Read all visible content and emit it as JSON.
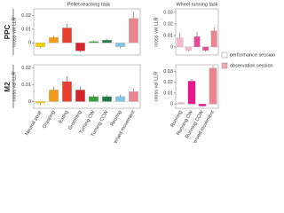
{
  "rows": [
    "PPC",
    "M2"
  ],
  "legend": [
    {
      "name": "performance session",
      "color": "#ffffff"
    },
    {
      "name": "observation session",
      "color": "#f2a7b4"
    }
  ],
  "chart_data": [
    {
      "type": "bar",
      "title": "Pellet-reaching task",
      "ylabel": "cross val LLR",
      "values": [
        -0.003,
        0.004,
        0.011,
        -0.006,
        0.001,
        0.002,
        -0.003,
        0.018
      ],
      "errors": [
        0.001,
        0.001,
        0.003,
        0.001,
        0.001,
        0.001,
        0.001,
        0.005
      ],
      "colors": [
        "#f2d100",
        "#f39a1d",
        "#e8402f",
        "#d4232b",
        "#3aa13a",
        "#1f7a4a",
        "#7fc6e4",
        "#e8868f"
      ],
      "ylim": [
        -0.009,
        0.025
      ],
      "yticks": [
        0,
        0.01,
        0.02
      ]
    },
    {
      "type": "bar",
      "title": "Wheel running task",
      "ylabel": "cross val LLR",
      "values": [
        0.008,
        -0.003,
        0.009,
        -0.003,
        0.014
      ],
      "errors": [
        0.004,
        0.001,
        0.004,
        0.001,
        0.003
      ],
      "colors": [
        "#f6b7cb",
        "#f6b7cb",
        "#e8449a",
        "#e8449a",
        "#e8868f"
      ],
      "ylim": [
        -0.007,
        0.033
      ],
      "yticks": [
        0,
        0.01,
        0.02,
        0.03
      ]
    },
    {
      "type": "bar",
      "ylabel": "cross val LLR",
      "categories": [
        "Neutral pose",
        "Grasping",
        "Eating",
        "Grooming",
        "Turning CW",
        "Turning CCW",
        "Rearing",
        "Observed movement"
      ],
      "values": [
        -0.001,
        0.007,
        0.012,
        0.007,
        0.003,
        0.003,
        0.003,
        0.006
      ],
      "errors": [
        0.001,
        0.002,
        0.003,
        0.002,
        0.001,
        0.001,
        0.001,
        0.002
      ],
      "colors": [
        "#f2d100",
        "#f39a1d",
        "#e8402f",
        "#d4232b",
        "#3aa13a",
        "#1f7a4a",
        "#7fc6e4",
        "#e8868f"
      ],
      "ylim": [
        -0.004,
        0.022
      ],
      "yticks": [
        0,
        0.01,
        0.02
      ]
    },
    {
      "type": "bar",
      "ylabel": "cross val LLR",
      "categories": [
        "Running",
        "Running CW",
        "Running CCW",
        "Observed movement"
      ],
      "values": [
        0.001,
        0.021,
        -0.002,
        0.033
      ],
      "errors": [
        0.0005,
        0.002,
        0.0005,
        0.002
      ],
      "colors": [
        "#f6b7cb",
        "#e6178a",
        "#e6178a",
        "#e8868f"
      ],
      "ylim": [
        -0.004,
        0.036
      ],
      "yticks": [
        0,
        0.01,
        0.02,
        0.03
      ]
    }
  ]
}
